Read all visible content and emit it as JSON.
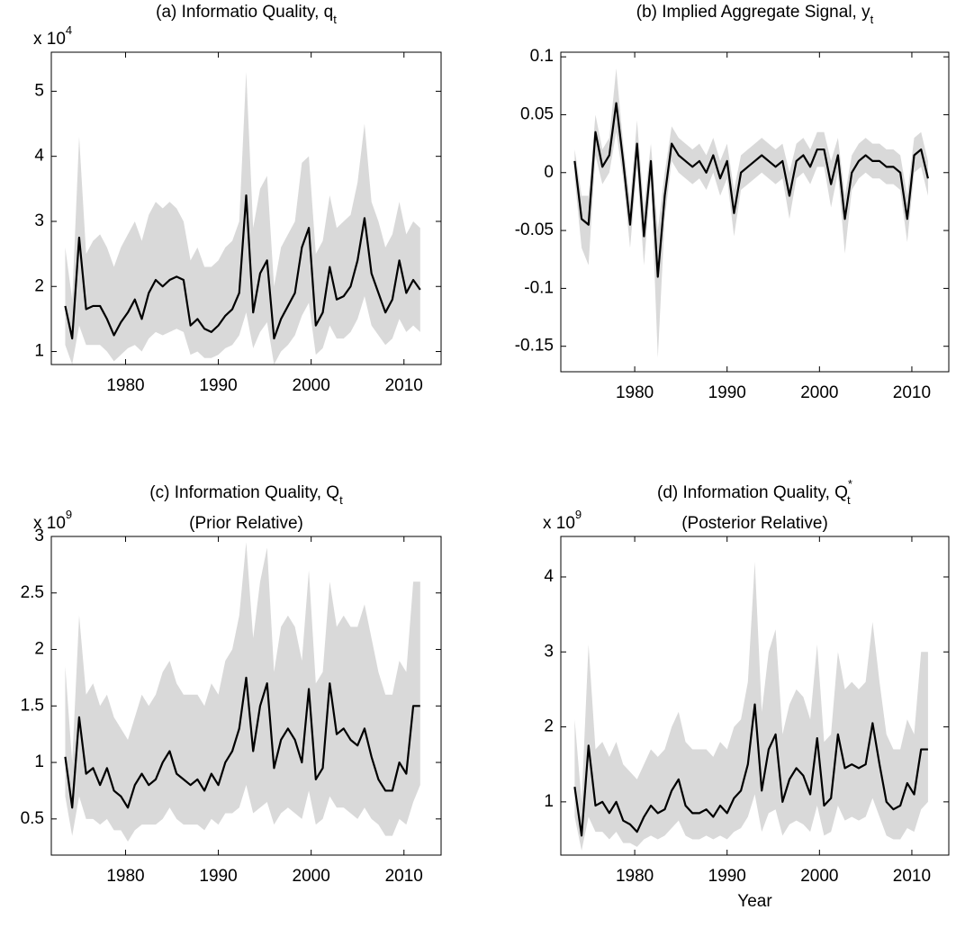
{
  "chart_data": [
    {
      "type": "line",
      "title": "(a) Informatio Quality, q",
      "title_sub": "t",
      "multiplier": {
        "base": "x 10",
        "exponent": "4"
      },
      "x": [
        1973.5,
        1974.25,
        1975,
        1975.75,
        1976.5,
        1977.25,
        1978,
        1978.75,
        1979.5,
        1980.25,
        1981,
        1981.75,
        1982.5,
        1983.25,
        1984,
        1984.75,
        1985.5,
        1986.25,
        1987,
        1987.75,
        1988.5,
        1989.25,
        1990,
        1990.75,
        1991.5,
        1992.25,
        1993,
        1993.75,
        1994.5,
        1995.25,
        1996,
        1996.75,
        1997.5,
        1998.25,
        1999,
        1999.75,
        2000.5,
        2001.25,
        2002,
        2002.75,
        2003.5,
        2004.25,
        2005,
        2005.75,
        2006.5,
        2007.25,
        2008,
        2008.75,
        2009.5,
        2010.25,
        2011,
        2011.75
      ],
      "band": {
        "color": "#d9d9d9",
        "lower": [
          1.1,
          0.8,
          1.4,
          1.1,
          1.1,
          1.1,
          1.0,
          0.85,
          0.95,
          1.05,
          1.1,
          1.0,
          1.2,
          1.3,
          1.25,
          1.3,
          1.35,
          1.3,
          0.95,
          1.0,
          0.9,
          0.9,
          0.95,
          1.05,
          1.1,
          1.25,
          1.6,
          1.05,
          1.3,
          1.45,
          0.8,
          1.0,
          1.1,
          1.25,
          1.55,
          1.75,
          0.95,
          1.05,
          1.4,
          1.2,
          1.2,
          1.3,
          1.5,
          1.85,
          1.4,
          1.25,
          1.1,
          1.2,
          1.5,
          1.3,
          1.4,
          1.3
        ],
        "upper": [
          2.6,
          1.8,
          4.3,
          2.5,
          2.7,
          2.8,
          2.6,
          2.3,
          2.6,
          2.8,
          3.0,
          2.7,
          3.1,
          3.3,
          3.2,
          3.3,
          3.2,
          3.0,
          2.4,
          2.6,
          2.3,
          2.3,
          2.4,
          2.6,
          2.7,
          3.0,
          5.3,
          2.9,
          3.5,
          3.7,
          2.0,
          2.6,
          2.8,
          3.0,
          3.9,
          4.0,
          2.5,
          2.7,
          3.4,
          2.9,
          3.0,
          3.1,
          3.6,
          4.5,
          3.3,
          3.0,
          2.6,
          2.8,
          3.3,
          2.8,
          3.0,
          2.9
        ]
      },
      "series": [
        {
          "color": "#000000",
          "values": [
            1.7,
            1.2,
            2.75,
            1.65,
            1.7,
            1.7,
            1.5,
            1.25,
            1.45,
            1.6,
            1.8,
            1.5,
            1.9,
            2.1,
            2.0,
            2.1,
            2.15,
            2.1,
            1.4,
            1.5,
            1.35,
            1.3,
            1.4,
            1.55,
            1.65,
            1.9,
            3.4,
            1.6,
            2.2,
            2.4,
            1.2,
            1.5,
            1.7,
            1.9,
            2.6,
            2.9,
            1.4,
            1.6,
            2.3,
            1.8,
            1.85,
            2.0,
            2.4,
            3.05,
            2.2,
            1.9,
            1.6,
            1.8,
            2.4,
            1.9,
            2.1,
            1.95
          ]
        }
      ],
      "xlim": [
        1972,
        2014
      ],
      "xticks": [
        1980,
        1990,
        2000,
        2010
      ],
      "ylim": [
        0.8,
        5.6
      ],
      "yticks": [
        1,
        2,
        3,
        4,
        5
      ]
    },
    {
      "type": "line",
      "title": "(b) Implied Aggregate Signal, y",
      "title_sub": "t",
      "x": [
        1973.5,
        1974.25,
        1975,
        1975.75,
        1976.5,
        1977.25,
        1978,
        1978.75,
        1979.5,
        1980.25,
        1981,
        1981.75,
        1982.5,
        1983.25,
        1984,
        1984.75,
        1985.5,
        1986.25,
        1987,
        1987.75,
        1988.5,
        1989.25,
        1990,
        1990.75,
        1991.5,
        1992.25,
        1993,
        1993.75,
        1994.5,
        1995.25,
        1996,
        1996.75,
        1997.5,
        1998.25,
        1999,
        1999.75,
        2000.5,
        2001.25,
        2002,
        2002.75,
        2003.5,
        2004.25,
        2005,
        2005.75,
        2006.5,
        2007.25,
        2008,
        2008.75,
        2009.5,
        2010.25,
        2011,
        2011.75
      ],
      "band": {
        "color": "#d9d9d9",
        "lower": [
          -0.005,
          -0.065,
          -0.08,
          0.015,
          -0.01,
          0.0,
          0.035,
          -0.005,
          -0.065,
          0.005,
          -0.08,
          -0.005,
          -0.16,
          -0.04,
          0.01,
          0.0,
          -0.005,
          -0.01,
          -0.005,
          -0.015,
          0.0,
          -0.02,
          -0.005,
          -0.055,
          -0.015,
          -0.01,
          -0.005,
          0.0,
          -0.005,
          -0.01,
          -0.005,
          -0.04,
          -0.005,
          0.0,
          -0.01,
          0.005,
          0.005,
          -0.03,
          0.0,
          -0.07,
          -0.015,
          -0.005,
          0.0,
          -0.005,
          -0.005,
          -0.01,
          -0.01,
          -0.015,
          -0.06,
          0.0,
          0.005,
          -0.02
        ],
        "upper": [
          0.02,
          -0.02,
          -0.02,
          0.05,
          0.02,
          0.03,
          0.09,
          0.025,
          -0.025,
          0.045,
          -0.03,
          0.025,
          -0.05,
          0.0,
          0.04,
          0.03,
          0.025,
          0.02,
          0.025,
          0.015,
          0.03,
          0.01,
          0.025,
          -0.015,
          0.015,
          0.02,
          0.025,
          0.03,
          0.025,
          0.02,
          0.025,
          0.0,
          0.025,
          0.03,
          0.02,
          0.035,
          0.035,
          0.01,
          0.03,
          -0.02,
          0.015,
          0.025,
          0.03,
          0.025,
          0.025,
          0.02,
          0.02,
          0.015,
          -0.02,
          0.03,
          0.035,
          0.01
        ]
      },
      "series": [
        {
          "color": "#000000",
          "values": [
            0.01,
            -0.04,
            -0.045,
            0.035,
            0.005,
            0.015,
            0.06,
            0.01,
            -0.045,
            0.025,
            -0.055,
            0.01,
            -0.09,
            -0.02,
            0.025,
            0.015,
            0.01,
            0.005,
            0.01,
            0.0,
            0.015,
            -0.005,
            0.01,
            -0.035,
            0.0,
            0.005,
            0.01,
            0.015,
            0.01,
            0.005,
            0.01,
            -0.02,
            0.01,
            0.015,
            0.005,
            0.02,
            0.02,
            -0.01,
            0.015,
            -0.04,
            0.0,
            0.01,
            0.015,
            0.01,
            0.01,
            0.005,
            0.005,
            0.0,
            -0.04,
            0.015,
            0.02,
            -0.005
          ]
        }
      ],
      "xlim": [
        1972,
        2014
      ],
      "xticks": [
        1980,
        1990,
        2000,
        2010
      ],
      "ylim": [
        -0.172,
        0.104
      ],
      "yticks": [
        -0.15,
        -0.1,
        -0.05,
        0,
        0.05,
        0.1
      ]
    },
    {
      "type": "line",
      "title": "(c) Information Quality, Q",
      "title_sub": "t",
      "subtitle": "(Prior Relative)",
      "multiplier": {
        "base": "x 10",
        "exponent": "9"
      },
      "x": [
        1973.5,
        1974.25,
        1975,
        1975.75,
        1976.5,
        1977.25,
        1978,
        1978.75,
        1979.5,
        1980.25,
        1981,
        1981.75,
        1982.5,
        1983.25,
        1984,
        1984.75,
        1985.5,
        1986.25,
        1987,
        1987.75,
        1988.5,
        1989.25,
        1990,
        1990.75,
        1991.5,
        1992.25,
        1993,
        1993.75,
        1994.5,
        1995.25,
        1996,
        1996.75,
        1997.5,
        1998.25,
        1999,
        1999.75,
        2000.5,
        2001.25,
        2002,
        2002.75,
        2003.5,
        2004.25,
        2005,
        2005.75,
        2006.5,
        2007.25,
        2008,
        2008.75,
        2009.5,
        2010.25,
        2011,
        2011.75
      ],
      "band": {
        "color": "#d9d9d9",
        "lower": [
          0.7,
          0.35,
          0.7,
          0.5,
          0.5,
          0.45,
          0.5,
          0.4,
          0.4,
          0.3,
          0.4,
          0.45,
          0.45,
          0.45,
          0.5,
          0.6,
          0.5,
          0.45,
          0.45,
          0.45,
          0.4,
          0.5,
          0.45,
          0.55,
          0.55,
          0.6,
          0.8,
          0.55,
          0.6,
          0.65,
          0.45,
          0.55,
          0.6,
          0.55,
          0.5,
          0.75,
          0.45,
          0.5,
          0.7,
          0.6,
          0.6,
          0.55,
          0.5,
          0.6,
          0.5,
          0.45,
          0.35,
          0.35,
          0.5,
          0.45,
          0.65,
          0.8
        ],
        "upper": [
          1.85,
          1.0,
          2.3,
          1.6,
          1.7,
          1.5,
          1.6,
          1.4,
          1.3,
          1.2,
          1.4,
          1.6,
          1.5,
          1.6,
          1.8,
          1.9,
          1.7,
          1.6,
          1.6,
          1.6,
          1.5,
          1.7,
          1.6,
          1.9,
          2.0,
          2.3,
          2.95,
          2.1,
          2.6,
          2.9,
          1.8,
          2.2,
          2.3,
          2.2,
          1.9,
          2.7,
          1.7,
          1.8,
          2.6,
          2.2,
          2.3,
          2.2,
          2.2,
          2.4,
          2.1,
          1.8,
          1.6,
          1.6,
          1.9,
          1.8,
          2.6,
          2.6
        ]
      },
      "series": [
        {
          "color": "#000000",
          "values": [
            1.05,
            0.6,
            1.4,
            0.9,
            0.95,
            0.8,
            0.95,
            0.75,
            0.7,
            0.6,
            0.8,
            0.9,
            0.8,
            0.85,
            1.0,
            1.1,
            0.9,
            0.85,
            0.8,
            0.85,
            0.75,
            0.9,
            0.8,
            1.0,
            1.1,
            1.3,
            1.75,
            1.1,
            1.5,
            1.7,
            0.95,
            1.2,
            1.3,
            1.2,
            1.0,
            1.65,
            0.85,
            0.95,
            1.7,
            1.25,
            1.3,
            1.2,
            1.15,
            1.3,
            1.05,
            0.85,
            0.75,
            0.75,
            1.0,
            0.9,
            1.5,
            1.5
          ]
        }
      ],
      "xlim": [
        1972,
        2014
      ],
      "xticks": [
        1980,
        1990,
        2000,
        2010
      ],
      "ylim": [
        0.18,
        3.0
      ],
      "yticks": [
        0.5,
        1,
        1.5,
        2,
        2.5,
        3
      ]
    },
    {
      "type": "line",
      "title": "(d) Information Quality, Q",
      "title_sub": "t",
      "title_sup": "*",
      "subtitle": "(Posterior Relative)",
      "multiplier": {
        "base": "x 10",
        "exponent": "9"
      },
      "xlabel": "Year",
      "x": [
        1973.5,
        1974.25,
        1975,
        1975.75,
        1976.5,
        1977.25,
        1978,
        1978.75,
        1979.5,
        1980.25,
        1981,
        1981.75,
        1982.5,
        1983.25,
        1984,
        1984.75,
        1985.5,
        1986.25,
        1987,
        1987.75,
        1988.5,
        1989.25,
        1990,
        1990.75,
        1991.5,
        1992.25,
        1993,
        1993.75,
        1994.5,
        1995.25,
        1996,
        1996.75,
        1997.5,
        1998.25,
        1999,
        1999.75,
        2000.5,
        2001.25,
        2002,
        2002.75,
        2003.5,
        2004.25,
        2005,
        2005.75,
        2006.5,
        2007.25,
        2008,
        2008.75,
        2009.5,
        2010.25,
        2011,
        2011.75
      ],
      "band": {
        "color": "#d9d9d9",
        "lower": [
          0.8,
          0.35,
          0.8,
          0.6,
          0.6,
          0.5,
          0.6,
          0.45,
          0.45,
          0.4,
          0.5,
          0.55,
          0.5,
          0.55,
          0.65,
          0.75,
          0.55,
          0.5,
          0.5,
          0.55,
          0.5,
          0.55,
          0.5,
          0.6,
          0.65,
          0.8,
          1.1,
          0.6,
          0.85,
          0.9,
          0.55,
          0.7,
          0.75,
          0.7,
          0.6,
          0.95,
          0.55,
          0.6,
          0.95,
          0.75,
          0.8,
          0.75,
          0.8,
          1.05,
          0.8,
          0.55,
          0.5,
          0.5,
          0.65,
          0.6,
          0.9,
          1.0
        ],
        "upper": [
          2.1,
          1.0,
          3.1,
          1.7,
          1.8,
          1.6,
          1.8,
          1.5,
          1.4,
          1.3,
          1.5,
          1.7,
          1.6,
          1.7,
          2.0,
          2.2,
          1.8,
          1.7,
          1.7,
          1.7,
          1.6,
          1.8,
          1.7,
          2.0,
          2.1,
          2.6,
          4.2,
          2.2,
          3.0,
          3.3,
          1.9,
          2.3,
          2.5,
          2.4,
          2.1,
          3.1,
          1.8,
          1.9,
          3.0,
          2.5,
          2.6,
          2.5,
          2.6,
          3.4,
          2.6,
          1.9,
          1.7,
          1.7,
          2.1,
          1.9,
          3.0,
          3.0
        ]
      },
      "series": [
        {
          "color": "#000000",
          "values": [
            1.2,
            0.55,
            1.75,
            0.95,
            1.0,
            0.85,
            1.0,
            0.75,
            0.7,
            0.6,
            0.8,
            0.95,
            0.85,
            0.9,
            1.15,
            1.3,
            0.95,
            0.85,
            0.85,
            0.9,
            0.8,
            0.95,
            0.85,
            1.05,
            1.15,
            1.5,
            2.3,
            1.15,
            1.7,
            1.9,
            1.0,
            1.3,
            1.45,
            1.35,
            1.1,
            1.85,
            0.95,
            1.05,
            1.9,
            1.45,
            1.5,
            1.45,
            1.5,
            2.05,
            1.5,
            1.0,
            0.9,
            0.95,
            1.25,
            1.1,
            1.7,
            1.7
          ]
        }
      ],
      "xlim": [
        1972,
        2014
      ],
      "xticks": [
        1980,
        1990,
        2000,
        2010
      ],
      "ylim": [
        0.29,
        4.54
      ],
      "yticks": [
        1,
        2,
        3,
        4
      ]
    }
  ]
}
